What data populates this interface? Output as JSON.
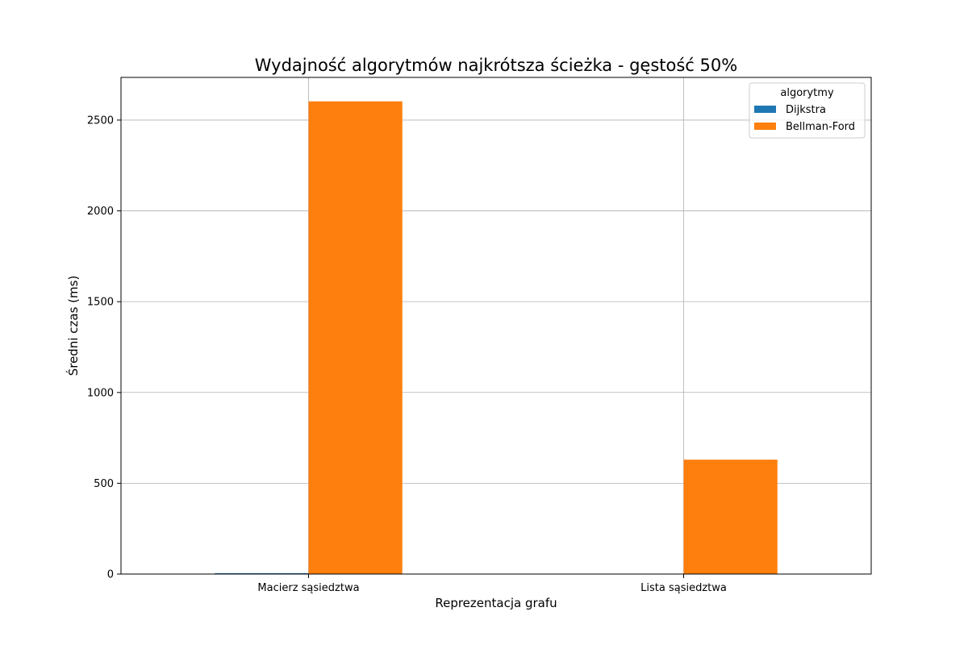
{
  "chart_data": {
    "type": "bar",
    "title": "Wydajność algorytmów najkrótsza ścieżka - gęstość 50%",
    "xlabel": "Reprezentacja grafu",
    "ylabel": "Średni czas (ms)",
    "categories": [
      "Macierz sąsiedztwa",
      "Lista sąsiedztwa"
    ],
    "series": [
      {
        "name": "Dijkstra",
        "values": [
          5,
          1
        ],
        "color": "#1f77b4"
      },
      {
        "name": "Bellman-Ford",
        "values": [
          2603,
          630
        ],
        "color": "#ff7f0e"
      }
    ],
    "ylim": [
      0,
      2735
    ],
    "yticks": [
      0,
      500,
      1000,
      1500,
      2000,
      2500
    ],
    "grid": true,
    "legend": {
      "title": "algorytmy",
      "position": "top-right"
    }
  }
}
